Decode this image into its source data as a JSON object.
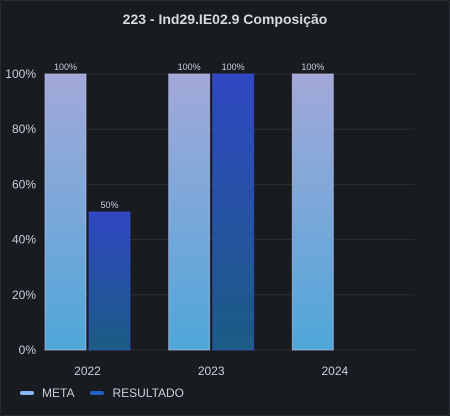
{
  "panel": {
    "title": "223 - Ind29.IE02.9 Composição"
  },
  "legend": [
    {
      "label": "META",
      "color": "#8ab8ff"
    },
    {
      "label": "RESULTADO",
      "color": "#1f60c4"
    }
  ],
  "chart_data": {
    "type": "bar",
    "title": "223 - Ind29.IE02.9 Composição",
    "xlabel": "",
    "ylabel": "",
    "categories": [
      "2022",
      "2023",
      "2024"
    ],
    "ylim": [
      0,
      100
    ],
    "yticks": [
      "0%",
      "20%",
      "40%",
      "60%",
      "80%",
      "100%"
    ],
    "grid": true,
    "legend_position": "bottom-left",
    "series": [
      {
        "name": "META",
        "values": [
          100,
          100,
          100
        ],
        "labels": [
          "100%",
          "100%",
          "100%"
        ]
      },
      {
        "name": "RESULTADO",
        "values": [
          50,
          100,
          null
        ],
        "labels": [
          "50%",
          "100%",
          ""
        ]
      }
    ]
  }
}
